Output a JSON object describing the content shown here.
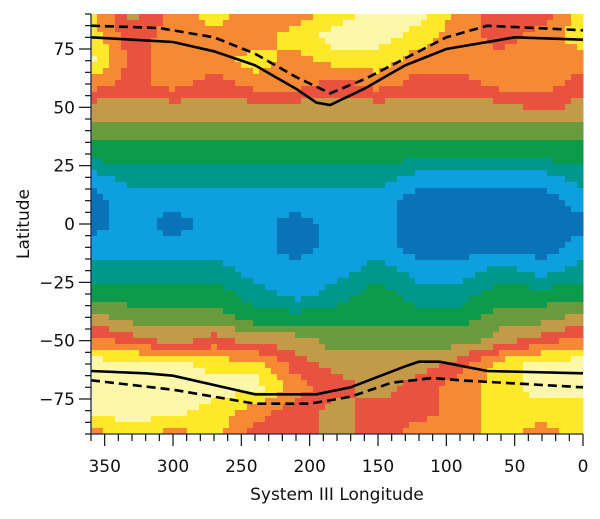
{
  "chart_data": {
    "type": "heatmap",
    "style": "filled contour",
    "xlabel": "System III Longitude",
    "ylabel": "Latitude",
    "xlim": [
      360,
      0
    ],
    "ylim": [
      -90,
      90
    ],
    "x_reversed": true,
    "x_ticks": [
      350,
      300,
      250,
      200,
      150,
      100,
      50,
      0
    ],
    "y_ticks": [
      75,
      50,
      25,
      0,
      -25,
      -50,
      -75
    ],
    "grid": false,
    "level_colors": [
      "#0a72b6",
      "#0e9fdf",
      "#00978c",
      "#0c9b4a",
      "#699a3c",
      "#c39b48",
      "#e8523f",
      "#f68a34",
      "#fde82a",
      "#fdf7aa"
    ],
    "grid_longitudes": [
      360,
      330,
      300,
      270,
      240,
      210,
      180,
      150,
      120,
      90,
      60,
      30,
      0
    ],
    "grid_latitudes": [
      90,
      80,
      70,
      60,
      50,
      40,
      30,
      20,
      10,
      0,
      -10,
      -20,
      -30,
      -40,
      -50,
      -60,
      -70,
      -80,
      -90
    ],
    "levels": [
      [
        8,
        5,
        7,
        8,
        7,
        7,
        8,
        9,
        9,
        7,
        6,
        6,
        8
      ],
      [
        8,
        6,
        7,
        7,
        7,
        8,
        9,
        9,
        8,
        7,
        6,
        7,
        8
      ],
      [
        9,
        6,
        7,
        7,
        8,
        7,
        8,
        8,
        7,
        7,
        7,
        7,
        7
      ],
      [
        7,
        6,
        7,
        6,
        7,
        7,
        6,
        7,
        6,
        6,
        7,
        7,
        6
      ],
      [
        5,
        5,
        5,
        5,
        5,
        5,
        5,
        5,
        5,
        5,
        5,
        6,
        5
      ],
      [
        4,
        4,
        4,
        4,
        4,
        4,
        4,
        4,
        4,
        4,
        4,
        4,
        4
      ],
      [
        3,
        3,
        3,
        3,
        3,
        3,
        3,
        3,
        3,
        3,
        3,
        3,
        3
      ],
      [
        1,
        2,
        2,
        2,
        2,
        2,
        2,
        2,
        1,
        1,
        1,
        1,
        2
      ],
      [
        0,
        1,
        1,
        1,
        1,
        1,
        1,
        1,
        0,
        0,
        0,
        0,
        1
      ],
      [
        0,
        1,
        0,
        1,
        1,
        0,
        1,
        1,
        0,
        0,
        0,
        0,
        0
      ],
      [
        1,
        1,
        1,
        1,
        1,
        0,
        1,
        1,
        0,
        0,
        0,
        0,
        1
      ],
      [
        2,
        2,
        2,
        2,
        1,
        1,
        1,
        2,
        1,
        1,
        2,
        1,
        2
      ],
      [
        3,
        3,
        3,
        3,
        2,
        1,
        2,
        3,
        2,
        2,
        3,
        3,
        3
      ],
      [
        5,
        4,
        4,
        4,
        3,
        3,
        3,
        3,
        3,
        3,
        4,
        4,
        5
      ],
      [
        7,
        6,
        5,
        6,
        5,
        5,
        4,
        4,
        4,
        4,
        5,
        6,
        7
      ],
      [
        9,
        9,
        9,
        8,
        8,
        6,
        5,
        5,
        5,
        6,
        8,
        9,
        9
      ],
      [
        9,
        9,
        9,
        9,
        9,
        7,
        6,
        5,
        6,
        7,
        8,
        9,
        9
      ],
      [
        9,
        9,
        9,
        8,
        7,
        6,
        5,
        6,
        6,
        7,
        8,
        8,
        8
      ],
      [
        7,
        8,
        7,
        8,
        6,
        6,
        5,
        6,
        7,
        7,
        8,
        7,
        8
      ]
    ],
    "lines": [
      {
        "style": "solid",
        "color": "#000000",
        "points": [
          [
            360,
            80
          ],
          [
            330,
            79
          ],
          [
            300,
            78
          ],
          [
            270,
            74
          ],
          [
            240,
            68
          ],
          [
            210,
            58
          ],
          [
            195,
            52
          ],
          [
            185,
            51
          ],
          [
            160,
            58
          ],
          [
            130,
            68
          ],
          [
            100,
            75
          ],
          [
            50,
            80
          ],
          [
            0,
            79
          ]
        ]
      },
      {
        "style": "dashed",
        "color": "#000000",
        "points": [
          [
            360,
            85
          ],
          [
            310,
            84
          ],
          [
            270,
            80
          ],
          [
            240,
            73
          ],
          [
            210,
            63
          ],
          [
            185,
            56
          ],
          [
            160,
            62
          ],
          [
            130,
            71
          ],
          [
            100,
            80
          ],
          [
            70,
            85
          ],
          [
            0,
            83
          ]
        ]
      },
      {
        "style": "solid",
        "color": "#000000",
        "points": [
          [
            360,
            -63
          ],
          [
            320,
            -64
          ],
          [
            300,
            -65
          ],
          [
            240,
            -73
          ],
          [
            195,
            -73
          ],
          [
            170,
            -70
          ],
          [
            130,
            -61
          ],
          [
            120,
            -59
          ],
          [
            105,
            -59
          ],
          [
            70,
            -63
          ],
          [
            0,
            -64
          ]
        ]
      },
      {
        "style": "dashed",
        "color": "#000000",
        "points": [
          [
            360,
            -67
          ],
          [
            300,
            -71
          ],
          [
            240,
            -77
          ],
          [
            200,
            -77
          ],
          [
            170,
            -74
          ],
          [
            140,
            -68
          ],
          [
            110,
            -66
          ],
          [
            90,
            -67
          ],
          [
            0,
            -70
          ]
        ]
      }
    ]
  }
}
